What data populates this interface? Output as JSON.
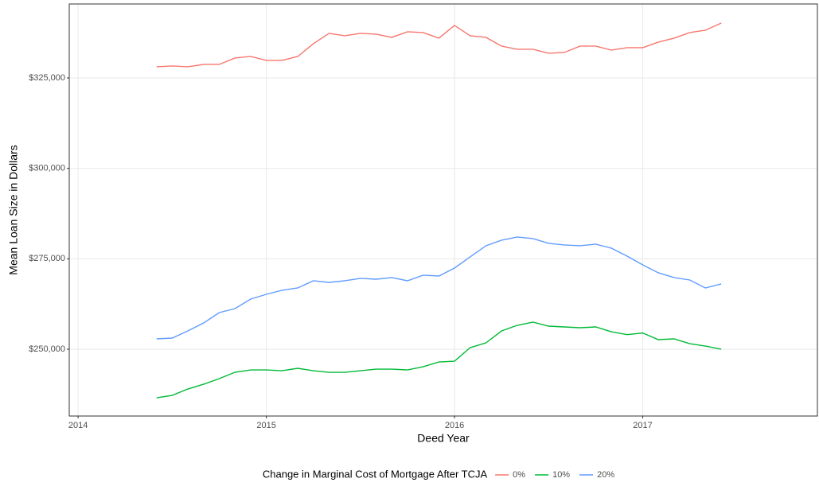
{
  "chart_data": {
    "type": "line",
    "x_label": "Deed Year",
    "y_label": "Mean Loan Size in Dollars",
    "legend_title": "Change in Marginal Cost of Mortgage After TCJA",
    "legend_position": "bottom",
    "grid": true,
    "x": [
      2014.417,
      2014.5,
      2014.583,
      2014.667,
      2014.75,
      2014.833,
      2014.917,
      2015,
      2015.083,
      2015.167,
      2015.25,
      2015.333,
      2015.417,
      2015.5,
      2015.583,
      2015.667,
      2015.75,
      2015.833,
      2015.917,
      2016,
      2016.083,
      2016.167,
      2016.25,
      2016.333,
      2016.417,
      2016.5,
      2016.583,
      2016.667,
      2016.75,
      2016.833,
      2016.917,
      2017,
      2017.083,
      2017.167,
      2017.25,
      2017.333,
      2017.417
    ],
    "xlim": [
      2013.953,
      2017.928
    ],
    "xticks": [
      2014,
      2015,
      2016,
      2017
    ],
    "ylim": [
      231530,
      345450
    ],
    "yticks": [
      {
        "value": 250000,
        "label": "$250,000"
      },
      {
        "value": 275000,
        "label": "$275,000"
      },
      {
        "value": 300000,
        "label": "$300,000"
      },
      {
        "value": 325000,
        "label": "$325,000"
      }
    ],
    "series": [
      {
        "name": "0%",
        "color": "#F8766D",
        "values": [
          328080,
          328300,
          328080,
          328740,
          328740,
          330500,
          330940,
          329840,
          329840,
          330940,
          334460,
          337320,
          336660,
          337320,
          337100,
          336220,
          337760,
          337540,
          336000,
          339520,
          336660,
          336220,
          333800,
          332920,
          332920,
          331820,
          332040,
          333800,
          333800,
          332700,
          333360,
          333360,
          334900,
          336000,
          337540,
          338200,
          340180
        ]
      },
      {
        "name": "10%",
        "color": "#00BA38",
        "values": [
          236580,
          237240,
          239000,
          240320,
          241860,
          243620,
          244280,
          244280,
          244060,
          244720,
          244060,
          243620,
          243620,
          244060,
          244500,
          244500,
          244280,
          245160,
          246480,
          246700,
          250440,
          251760,
          255060,
          256600,
          257480,
          256380,
          256160,
          255940,
          256160,
          254840,
          254040,
          254480,
          252640,
          252860,
          251540,
          250880,
          250000
        ]
      },
      {
        "name": "20%",
        "color": "#619CFF",
        "values": [
          252860,
          253080,
          255060,
          257260,
          260120,
          261220,
          263860,
          265180,
          266280,
          266940,
          268920,
          268480,
          268920,
          269580,
          269360,
          269800,
          268920,
          270460,
          270240,
          272440,
          275520,
          278600,
          280140,
          281020,
          280580,
          279260,
          278820,
          278600,
          279040,
          277940,
          275740,
          273320,
          271120,
          269800,
          269140,
          266940,
          268040
        ]
      }
    ]
  }
}
